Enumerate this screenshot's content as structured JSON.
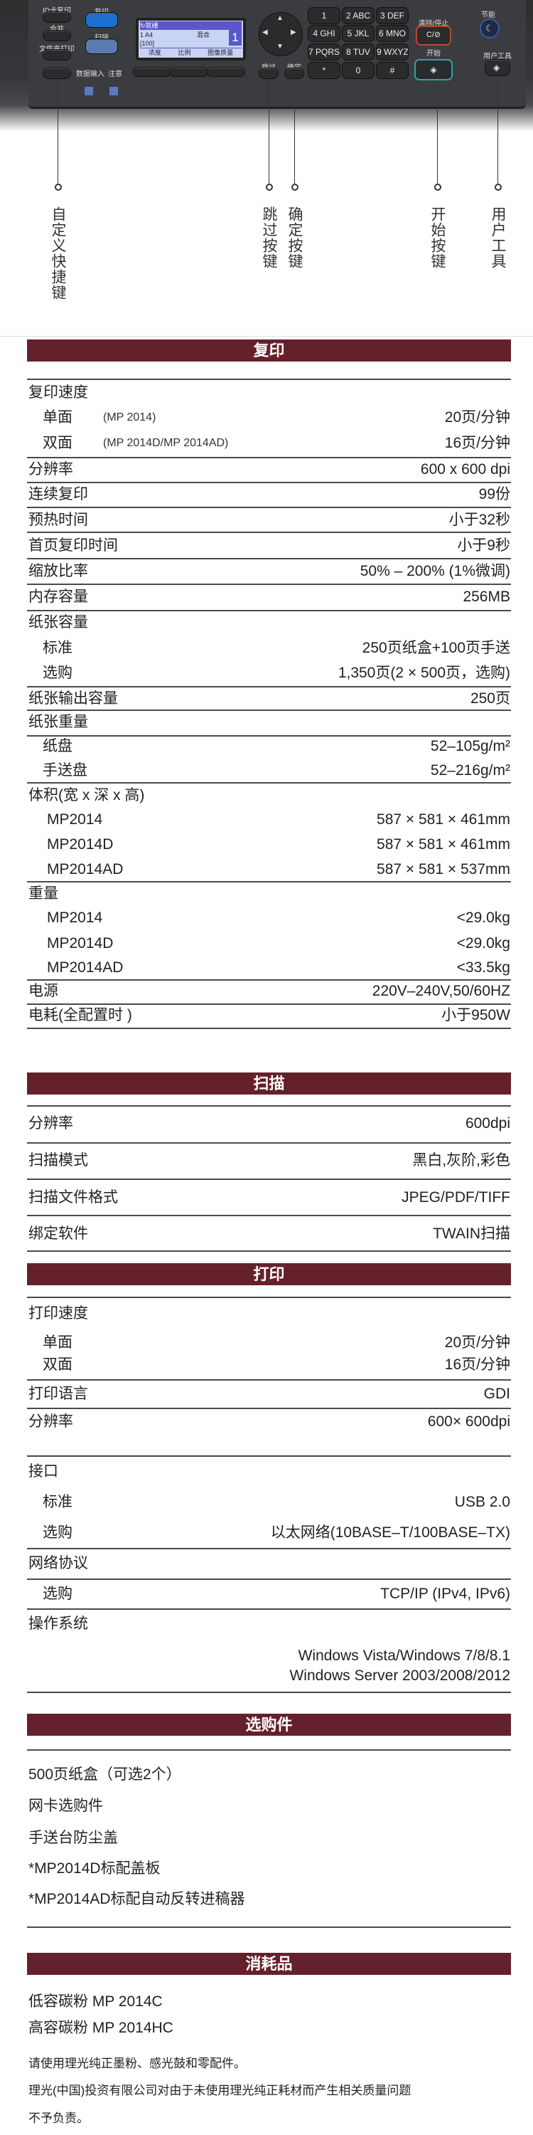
{
  "control_panel": {
    "buttons": {
      "id_copy": "ID卡复印",
      "copy": "复印",
      "combine": "合并",
      "scan": "扫描",
      "folder_print": "文件夹打印",
      "data_in": "数据输入",
      "alert": "注意",
      "skip": "跳过",
      "ok": "确定",
      "clear_stop": "清除/停止",
      "clear_key": "C/⊘",
      "start": "开始",
      "energy_saver": "节能",
      "user_tools": "用户工具"
    },
    "lcd": {
      "status": "就绪",
      "line1_left": "1 A4",
      "line1_mid": "混合",
      "line1_count": "1",
      "line2": "[100]",
      "softkeys": [
        "浓度",
        "比例",
        "图像质量"
      ]
    },
    "keypad": [
      "1",
      "2 ABC",
      "3 DEF",
      "4 GHI",
      "5 JKL",
      "6 MNO",
      "7 PQRS",
      "8 TUV",
      "9 WXYZ",
      "*",
      "0",
      "#"
    ]
  },
  "callouts": [
    "自定义快捷键",
    "跳过按键",
    "确定按键",
    "开始按键",
    "用户工具"
  ],
  "colors": {
    "section_header": "#65212b",
    "rule": "#4a4a4a",
    "text": "#222222"
  },
  "copy": {
    "title": "复印",
    "rows": [
      {
        "label": "复印速度"
      },
      {
        "label": "单面",
        "note": "(MP 2014)",
        "value": "20页/分钟",
        "sub": true
      },
      {
        "label": "双面",
        "note": "(MP 2014D/MP 2014AD)",
        "value": "16页/分钟",
        "sub": true
      },
      {
        "label": "分辨率",
        "value": "600 x 600 dpi"
      },
      {
        "label": "连续复印",
        "value": "99份"
      },
      {
        "label": "预热时间",
        "value": "小于32秒"
      },
      {
        "label": "首页复印时间",
        "value": "小于9秒"
      },
      {
        "label": "缩放比率",
        "value": "50% – 200% (1%微调)"
      },
      {
        "label": "内存容量",
        "value": "256MB"
      },
      {
        "label": "纸张容量"
      },
      {
        "label": "标准",
        "value": "250页纸盒+100页手送",
        "sub": true
      },
      {
        "label": "选购",
        "value": "1,350页(2 × 500页，选购)",
        "sub": true
      },
      {
        "label": "纸张输出容量",
        "value": "250页"
      },
      {
        "label": "纸张重量"
      },
      {
        "label": "纸盘",
        "value": "52–105g/m²",
        "sub": true
      },
      {
        "label": "手送盘",
        "value": "52–216g/m²",
        "sub": true
      },
      {
        "label": "体积(宽 x 深 x 高)"
      },
      {
        "label": "MP2014",
        "value": "587 × 581 × 461mm",
        "model": true
      },
      {
        "label": "MP2014D",
        "value": "587 × 581 × 461mm",
        "model": true
      },
      {
        "label": "MP2014AD",
        "value": "587 × 581 × 537mm",
        "model": true
      },
      {
        "label": "重量"
      },
      {
        "label": "MP2014",
        "value": "<29.0kg",
        "model": true
      },
      {
        "label": "MP2014D",
        "value": "<29.0kg",
        "model": true
      },
      {
        "label": "MP2014AD",
        "value": "<33.5kg",
        "model": true
      },
      {
        "label": "电源",
        "value": "220V–240V,50/60HZ"
      },
      {
        "label": "电耗(全配置时 )",
        "value": "小于950W"
      }
    ]
  },
  "scan": {
    "title": "扫描",
    "rows": [
      {
        "label": "分辨率",
        "value": "600dpi"
      },
      {
        "label": "扫描模式",
        "value": "黑白,灰阶,彩色"
      },
      {
        "label": "扫描文件格式",
        "value": "JPEG/PDF/TIFF"
      },
      {
        "label": "绑定软件",
        "value": "TWAIN扫描"
      }
    ]
  },
  "print": {
    "title": "打印",
    "rows": [
      {
        "label": "打印速度"
      },
      {
        "label": "单面",
        "value": "20页/分钟",
        "sub": true
      },
      {
        "label": "双面",
        "value": "16页/分钟",
        "sub": true
      },
      {
        "label": "打印语言",
        "value": "GDI"
      },
      {
        "label": "分辨率",
        "value": "600× 600dpi"
      },
      {
        "label": "接口"
      },
      {
        "label": "标准",
        "value": "USB 2.0",
        "sub": true
      },
      {
        "label": "选购",
        "value": "以太网络(10BASE–T/100BASE–TX)",
        "sub": true
      },
      {
        "label": "网络协议"
      },
      {
        "label": "选购",
        "value": "TCP/IP (IPv4, IPv6)",
        "sub": true
      },
      {
        "label": "操作系统"
      }
    ],
    "os_lines": [
      "Windows Vista/Windows 7/8/8.1",
      "Windows Server 2003/2008/2012"
    ]
  },
  "options": {
    "title": "选购件",
    "items": [
      "500页纸盒（可选2个）",
      "网卡选购件",
      "手送台防尘盖",
      "*MP2014D标配盖板",
      "*MP2014AD标配自动反转进稿器"
    ]
  },
  "consumables": {
    "title": "消耗品",
    "items": [
      "低容碳粉 MP 2014C",
      "高容碳粉 MP 2014HC"
    ],
    "notes": [
      "请使用理光纯正墨粉、感光鼓和零配件。",
      "理光(中国)投资有限公司对由于未使用理光纯正耗材而产生相关质量问题",
      "不予负责。"
    ]
  }
}
